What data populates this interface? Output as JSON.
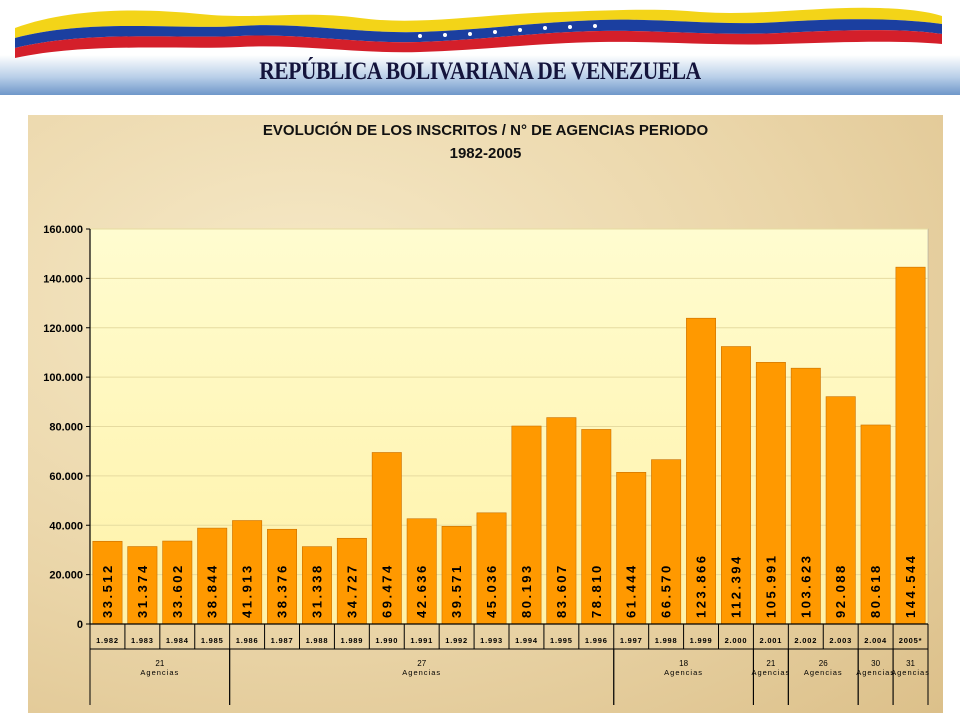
{
  "header": {
    "title": "REPÚBLICA BOLIVARIANA DE VENEZUELA"
  },
  "colors": {
    "bar": "#ff9900",
    "bar_border": "#c96f00",
    "plot_bg_top": "#fffcd0",
    "plot_bg_bottom": "#fff2a8"
  },
  "chart_data": {
    "type": "bar",
    "title": "EVOLUCIÓN DE LOS INSCRITOS / N° DE AGENCIAS PERIODO",
    "subtitle": "1982-2005",
    "xlabel": "",
    "ylabel": "",
    "ylim": [
      0,
      160000
    ],
    "yticks": [
      0,
      20000,
      40000,
      60000,
      80000,
      100000,
      120000,
      140000,
      160000
    ],
    "ytick_labels": [
      "0",
      "20.000",
      "40.000",
      "60.000",
      "80.000",
      "100.000",
      "120.000",
      "140.000",
      "160.000"
    ],
    "grid": true,
    "categories": [
      "1.982",
      "1.983",
      "1.984",
      "1.985",
      "1.986",
      "1.987",
      "1.988",
      "1.989",
      "1.990",
      "1.991",
      "1.992",
      "1.993",
      "1.994",
      "1.995",
      "1.996",
      "1.997",
      "1.998",
      "1.999",
      "2.000",
      "2.001",
      "2.002",
      "2.003",
      "2.004",
      "2005*"
    ],
    "values": [
      33512,
      31374,
      33602,
      38844,
      41913,
      38376,
      31338,
      34727,
      69474,
      42636,
      39571,
      45036,
      80193,
      83607,
      78810,
      61444,
      66570,
      123866,
      112394,
      105991,
      103623,
      92088,
      80618,
      144544
    ],
    "value_labels": [
      "33.512",
      "31.374",
      "33.602",
      "38.844",
      "41.913",
      "38.376",
      "31.338",
      "34.727",
      "69.474",
      "42.636",
      "39.571",
      "45.036",
      "80.193",
      "83.607",
      "78.810",
      "61.444",
      "66.570",
      "123.866",
      "112.394",
      "105.991",
      "103.623",
      "92.088",
      "80.618",
      "144.544"
    ],
    "agency_groups": [
      {
        "number": "21",
        "label": "Agencias",
        "start": 0,
        "end": 3
      },
      {
        "number": "27",
        "label": "Agencias",
        "start": 4,
        "end": 14
      },
      {
        "number": "18",
        "label": "Agencias",
        "start": 15,
        "end": 18
      },
      {
        "number": "21",
        "label": "Agencias",
        "start": 19,
        "end": 19
      },
      {
        "number": "26",
        "label": "Agencias",
        "start": 20,
        "end": 21
      },
      {
        "number": "30",
        "label": "Agencias",
        "start": 22,
        "end": 22
      },
      {
        "number": "31",
        "label": "Agencias",
        "start": 23,
        "end": 23
      }
    ]
  }
}
